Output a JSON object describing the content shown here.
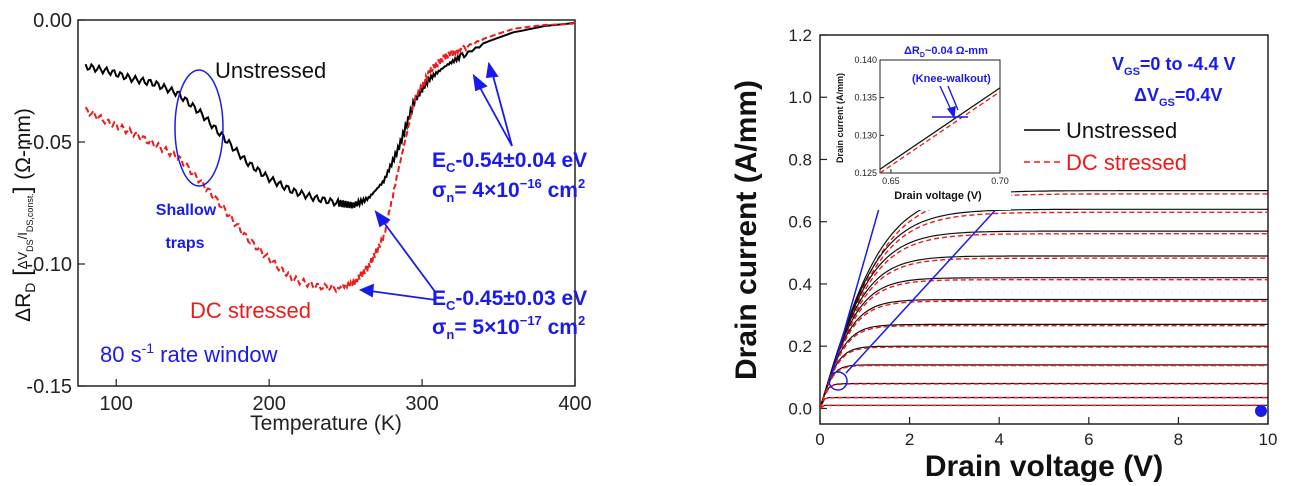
{
  "chart_data": [
    {
      "type": "line",
      "xlabel": "Temperature (K)",
      "ylabel": "ΔRD [ΔVDS/IDS,const.] (Ω-mm)",
      "ylabel_parts": {
        "delta_r": "ΔR",
        "sub_d": "D",
        "delta_v": "ΔV",
        "sub_ds": "DS",
        "slash_i": "/I",
        "sub_dsconst": "DS,const.",
        "unit": "(Ω-mm)"
      },
      "xlim": [
        75,
        400
      ],
      "ylim": [
        -0.15,
        0.0
      ],
      "xticks": [
        100,
        200,
        300,
        400
      ],
      "yticks": [
        "0.00",
        "-0.05",
        "-0.10",
        "-0.15"
      ],
      "x": [
        80,
        95,
        110,
        125,
        140,
        155,
        170,
        185,
        200,
        215,
        230,
        245,
        255,
        265,
        275,
        285,
        295,
        305,
        315,
        325,
        340,
        360,
        380,
        400
      ],
      "series": [
        {
          "name": "Unstressed",
          "color": "#000000",
          "style": "solid",
          "values": [
            -0.019,
            -0.021,
            -0.024,
            -0.026,
            -0.03,
            -0.038,
            -0.048,
            -0.058,
            -0.065,
            -0.07,
            -0.073,
            -0.075,
            -0.076,
            -0.073,
            -0.066,
            -0.052,
            -0.033,
            -0.024,
            -0.019,
            -0.015,
            -0.01,
            -0.005,
            -0.002,
            -0.001
          ]
        },
        {
          "name": "DC stressed",
          "color": "#ee1a1a",
          "style": "dashed",
          "values": [
            -0.037,
            -0.042,
            -0.046,
            -0.051,
            -0.056,
            -0.066,
            -0.077,
            -0.089,
            -0.098,
            -0.106,
            -0.109,
            -0.11,
            -0.108,
            -0.101,
            -0.089,
            -0.06,
            -0.033,
            -0.021,
            -0.015,
            -0.012,
            -0.008,
            -0.004,
            -0.002,
            -0.001
          ]
        }
      ],
      "annotations": {
        "unstressed_label": "Unstressed",
        "dc_stressed_label": "DC stressed",
        "shallow_traps": "Shallow\ntraps",
        "shallow_traps_line1": "Shallow",
        "shallow_traps_line2": "traps",
        "trap1_energy": {
          "a": "E",
          "sub": "C",
          "b": "-0.54±0.04 eV"
        },
        "trap1_sigma": {
          "a": "σ",
          "sub": "n",
          "b": "= 4×10",
          "sup": "−16",
          "c": " cm",
          "sup2": "2"
        },
        "trap2_energy": {
          "a": "E",
          "sub": "C",
          "b": "-0.45±0.03 eV"
        },
        "trap2_sigma": {
          "a": "σ",
          "sub": "n",
          "b": "= 5×10",
          "sup": "−17",
          "c": " cm",
          "sup2": "2"
        },
        "rate_window": {
          "a": "80 s",
          "sup": "-1",
          "b": " rate window"
        }
      }
    },
    {
      "type": "line",
      "xlabel": "Drain voltage (V)",
      "ylabel": "Drain current (A/mm)",
      "xlim": [
        0,
        10
      ],
      "ylim": [
        -0.05,
        1.2
      ],
      "xticks": [
        0,
        2,
        4,
        6,
        8,
        10
      ],
      "yticks": [
        "0.0",
        "0.2",
        "0.4",
        "0.6",
        "0.8",
        "1.0",
        "1.2"
      ],
      "vgs_steps": [
        0,
        -0.4,
        -0.8,
        -1.2,
        -1.6,
        -2.0,
        -2.4,
        -2.8,
        -3.2,
        -3.6,
        -4.0,
        -4.4
      ],
      "isat": [
        0.7,
        0.64,
        0.57,
        0.49,
        0.42,
        0.35,
        0.27,
        0.2,
        0.14,
        0.08,
        0.035,
        0.01
      ],
      "legend": {
        "placement": "right",
        "entries": [
          {
            "name": "Unstressed",
            "color": "#000000",
            "style": "solid"
          },
          {
            "name": "DC stressed",
            "color": "#ee1a1a",
            "style": "dashed"
          }
        ]
      },
      "annotations": {
        "vgs_range": {
          "a": "V",
          "sub": "GS",
          "b": "=0 to -4.4 V"
        },
        "vgs_step": {
          "a": "ΔV",
          "sub": "GS",
          "b": "=0.4V"
        }
      },
      "inset": {
        "xlabel": "Drain voltage (V)",
        "ylabel": "Drain current (A/mm)",
        "xlim": [
          0.645,
          0.7
        ],
        "ylim": [
          0.125,
          0.14
        ],
        "xticks": [
          "0.65",
          "0.70"
        ],
        "yticks": [
          "0.125",
          "0.130",
          "0.135",
          "0.140"
        ],
        "unstressed_line": {
          "x": [
            0.645,
            0.7
          ],
          "y": [
            0.1255,
            0.1363
          ]
        },
        "stressed_line": {
          "x": [
            0.645,
            0.7
          ],
          "y": [
            0.125,
            0.1358
          ]
        },
        "title": {
          "a": "ΔR",
          "sub": "D",
          "b": "~0.04 Ω-mm"
        },
        "note": "(Knee-walkout)"
      }
    }
  ]
}
